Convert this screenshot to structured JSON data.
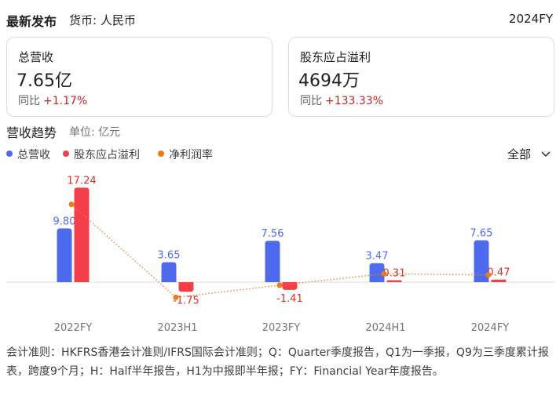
{
  "header": {
    "title": "最新发布",
    "currency": "货币: 人民币",
    "period": "2024FY"
  },
  "cards": [
    {
      "label": "总营收",
      "value": "7.65亿",
      "yoy_label": "同比",
      "yoy_delta": "+1.17%"
    },
    {
      "label": "股东应占溢利",
      "value": "4694万",
      "yoy_label": "同比",
      "yoy_delta": "+133.33%"
    }
  ],
  "trend": {
    "title": "营收趋势",
    "unit": "单位: 亿元",
    "range_label": "全部",
    "legend": [
      {
        "name": "总营收",
        "color": "#4f6bed"
      },
      {
        "name": "股东应占溢利",
        "color": "#f43f4a"
      },
      {
        "name": "净利润率",
        "color": "#f07a1a"
      }
    ]
  },
  "chart_data": {
    "type": "bar",
    "categories": [
      "2022FY",
      "2023H1",
      "2023FY",
      "2024H1",
      "2024FY"
    ],
    "series": [
      {
        "name": "总营收",
        "type": "bar",
        "color": "#4f6bed",
        "values": [
          9.8,
          3.65,
          7.56,
          3.47,
          7.65
        ],
        "labels": [
          "9.80",
          "3.65",
          "7.56",
          "3.47",
          "7.65"
        ]
      },
      {
        "name": "股东应占溢利",
        "type": "bar",
        "color": "#f43f4a",
        "values": [
          17.24,
          -1.75,
          -1.41,
          0.31,
          0.47
        ],
        "labels": [
          "17.24",
          "-1.75",
          "-1.41",
          "0.31",
          "0.47"
        ]
      },
      {
        "name": "净利润率",
        "type": "line",
        "color": "#f07a1a",
        "style": "dotted",
        "values": [
          175.9,
          -47.9,
          -18.7,
          8.9,
          6.1
        ]
      }
    ],
    "grid": false,
    "legend_position": "top-left"
  },
  "footnote": "会计准则：HKFRS香港会计准则/IFRS国际会计准则；Q：Quarter季度报告，Q1为一季报，Q9为三季度累计报表，跨度9个月；H：Half半年报告，H1为中报即半年报；FY：Financial Year年度报告。"
}
